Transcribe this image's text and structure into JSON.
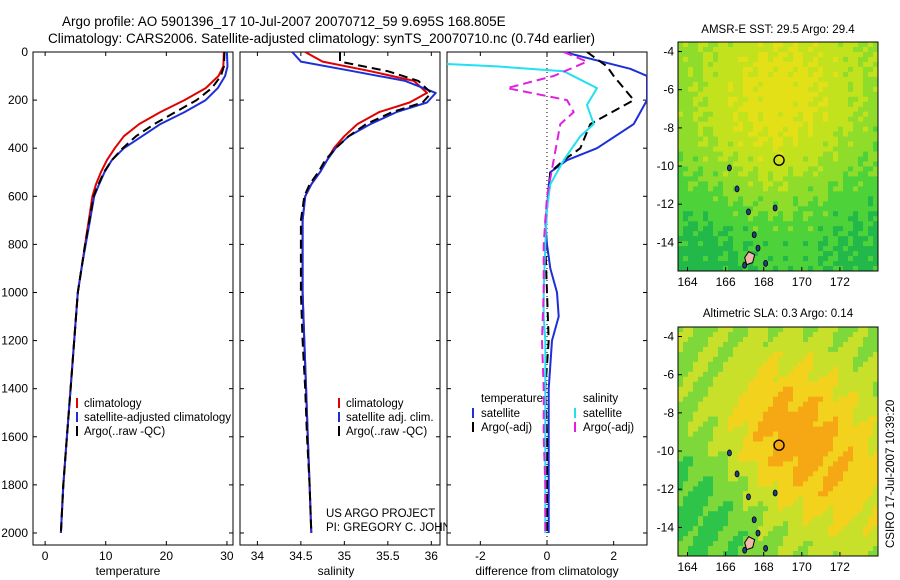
{
  "header": {
    "title_line1": "Argo profile: AO 5901396_17 10-Jul-2007 20070712_59 9.695S 168.805E",
    "title_line2": "Climatology: CARS2006. Satellite-adjusted climatology: synTS_20070710.nc (0.74d earlier)"
  },
  "credits": {
    "project": "US ARGO PROJECT",
    "pi": "PI: GREGORY C. JOHNSON",
    "stamp": "CSIRO 17-Jul-2007 10:39:20"
  },
  "colors": {
    "climatology": "#e00000",
    "satellite": "#1c2fd8",
    "argo": "#000000",
    "sat_salinity": "#22e0f0",
    "argo_salinity_adj": "#e020e0",
    "land": "#f0b8a8"
  },
  "chart_data": [
    {
      "type": "line",
      "id": "temperature",
      "xlabel": "temperature",
      "xlim": [
        -2,
        31
      ],
      "ylim": [
        2050,
        0
      ],
      "xticks": [
        0,
        10,
        20,
        30
      ],
      "yticks": [
        0,
        200,
        400,
        600,
        800,
        1000,
        1200,
        1400,
        1600,
        1800,
        2000
      ],
      "legend": [
        "climatology",
        "satellite-adjusted climatology",
        "Argo(..raw -QC)"
      ],
      "legend_position": "lower-right",
      "series": [
        {
          "name": "climatology",
          "color_key": "climatology",
          "dash": "",
          "points": [
            [
              29.5,
              0
            ],
            [
              29.4,
              60
            ],
            [
              28.6,
              100
            ],
            [
              26.5,
              150
            ],
            [
              23,
              200
            ],
            [
              19,
              250
            ],
            [
              15.5,
              300
            ],
            [
              13,
              350
            ],
            [
              11.5,
              400
            ],
            [
              10.2,
              450
            ],
            [
              9.2,
              500
            ],
            [
              8.4,
              550
            ],
            [
              7.8,
              600
            ],
            [
              7.2,
              700
            ],
            [
              6.6,
              800
            ],
            [
              6.0,
              900
            ],
            [
              5.4,
              1000
            ],
            [
              4.8,
              1200
            ],
            [
              4.2,
              1400
            ],
            [
              3.6,
              1600
            ],
            [
              3.0,
              1800
            ],
            [
              2.6,
              2000
            ]
          ]
        },
        {
          "name": "satellite-adjusted climatology",
          "color_key": "satellite",
          "dash": "",
          "points": [
            [
              30,
              0
            ],
            [
              30.1,
              60
            ],
            [
              29.7,
              100
            ],
            [
              28.5,
              150
            ],
            [
              26.5,
              200
            ],
            [
              23,
              250
            ],
            [
              19,
              300
            ],
            [
              16,
              350
            ],
            [
              13,
              400
            ],
            [
              11,
              450
            ],
            [
              9.8,
              500
            ],
            [
              8.9,
              550
            ],
            [
              8.1,
              600
            ],
            [
              7.4,
              700
            ],
            [
              6.7,
              800
            ],
            [
              6.0,
              900
            ],
            [
              5.4,
              1000
            ],
            [
              4.8,
              1200
            ],
            [
              4.2,
              1400
            ],
            [
              3.6,
              1600
            ],
            [
              3.0,
              1800
            ],
            [
              2.6,
              2000
            ]
          ]
        },
        {
          "name": "Argo(..raw -QC)",
          "color_key": "argo",
          "dash": "9,5",
          "points": [
            [
              29.6,
              0
            ],
            [
              29.5,
              60
            ],
            [
              29,
              100
            ],
            [
              27.5,
              150
            ],
            [
              25,
              200
            ],
            [
              21.5,
              250
            ],
            [
              18,
              300
            ],
            [
              15,
              350
            ],
            [
              12.8,
              400
            ],
            [
              11,
              450
            ],
            [
              9.7,
              500
            ],
            [
              8.8,
              550
            ],
            [
              8.0,
              600
            ],
            [
              7.3,
              700
            ],
            [
              6.6,
              800
            ],
            [
              6.0,
              900
            ],
            [
              5.4,
              1000
            ],
            [
              4.8,
              1200
            ],
            [
              4.2,
              1400
            ],
            [
              3.6,
              1600
            ],
            [
              3.0,
              1800
            ],
            [
              2.6,
              2000
            ]
          ]
        }
      ]
    },
    {
      "type": "line",
      "id": "salinity",
      "xlabel": "salinity",
      "xlim": [
        33.8,
        36.1
      ],
      "ylim": [
        2050,
        0
      ],
      "xticks": [
        34,
        34.5,
        35,
        35.5,
        36
      ],
      "yticks": [
        0,
        200,
        400,
        600,
        800,
        1000,
        1200,
        1400,
        1600,
        1800,
        2000
      ],
      "legend": [
        "climatology",
        "satellite adj. clim.",
        "Argo(..raw -QC)"
      ],
      "legend_position": "lower-right",
      "series": [
        {
          "name": "climatology",
          "color_key": "climatology",
          "dash": "",
          "points": [
            [
              34.55,
              0
            ],
            [
              34.75,
              40
            ],
            [
              35.3,
              80
            ],
            [
              35.8,
              120
            ],
            [
              35.95,
              170
            ],
            [
              35.75,
              210
            ],
            [
              35.4,
              250
            ],
            [
              35.15,
              300
            ],
            [
              35.0,
              350
            ],
            [
              34.88,
              400
            ],
            [
              34.8,
              450
            ],
            [
              34.72,
              500
            ],
            [
              34.62,
              550
            ],
            [
              34.55,
              600
            ],
            [
              34.52,
              700
            ],
            [
              34.52,
              800
            ],
            [
              34.52,
              1000
            ],
            [
              34.54,
              1200
            ],
            [
              34.56,
              1400
            ],
            [
              34.58,
              1600
            ],
            [
              34.6,
              1800
            ],
            [
              34.62,
              2000
            ]
          ]
        },
        {
          "name": "satellite adj. clim.",
          "color_key": "satellite",
          "dash": "",
          "points": [
            [
              34.4,
              0
            ],
            [
              34.5,
              40
            ],
            [
              35.1,
              80
            ],
            [
              35.7,
              120
            ],
            [
              36.05,
              170
            ],
            [
              35.95,
              210
            ],
            [
              35.6,
              250
            ],
            [
              35.3,
              300
            ],
            [
              35.05,
              350
            ],
            [
              34.9,
              400
            ],
            [
              34.8,
              450
            ],
            [
              34.72,
              500
            ],
            [
              34.62,
              550
            ],
            [
              34.55,
              600
            ],
            [
              34.52,
              700
            ],
            [
              34.52,
              800
            ],
            [
              34.52,
              1000
            ],
            [
              34.54,
              1200
            ],
            [
              34.56,
              1400
            ],
            [
              34.58,
              1600
            ],
            [
              34.6,
              1800
            ],
            [
              34.62,
              2000
            ]
          ]
        },
        {
          "name": "Argo(..raw -QC)",
          "color_key": "argo",
          "dash": "9,5",
          "points": [
            [
              34.95,
              0
            ],
            [
              34.95,
              40
            ],
            [
              35.5,
              80
            ],
            [
              35.85,
              120
            ],
            [
              36.0,
              170
            ],
            [
              35.9,
              210
            ],
            [
              35.55,
              250
            ],
            [
              35.25,
              300
            ],
            [
              35.05,
              350
            ],
            [
              34.9,
              400
            ],
            [
              34.78,
              450
            ],
            [
              34.7,
              500
            ],
            [
              34.6,
              550
            ],
            [
              34.54,
              600
            ],
            [
              34.5,
              700
            ],
            [
              34.5,
              800
            ],
            [
              34.5,
              1000
            ],
            [
              34.52,
              1200
            ],
            [
              34.55,
              1400
            ],
            [
              34.57,
              1600
            ],
            [
              34.6,
              1800
            ],
            [
              34.62,
              2000
            ]
          ]
        }
      ]
    },
    {
      "type": "line",
      "id": "difference",
      "xlabel": "difference from climatology",
      "xlim": [
        -3,
        3
      ],
      "ylim": [
        2050,
        0
      ],
      "xticks": [
        -2,
        0,
        2
      ],
      "zero_line": 0,
      "legend_left_title": "temperature",
      "legend_right_title": "salinity",
      "legend_left": [
        "satellite",
        "Argo(-adj)"
      ],
      "legend_right": [
        "satellite",
        "Argo(-adj)"
      ],
      "legend_position": "lower-center",
      "series": [
        {
          "name": "temperature satellite",
          "color_key": "satellite",
          "dash": "",
          "points": [
            [
              0.5,
              0
            ],
            [
              2.5,
              70
            ],
            [
              3.0,
              100
            ],
            [
              3.0,
              200
            ],
            [
              2.6,
              300
            ],
            [
              1.5,
              400
            ],
            [
              0.6,
              450
            ],
            [
              0.1,
              500
            ],
            [
              0.05,
              560
            ],
            [
              0.0,
              650
            ],
            [
              -0.05,
              700
            ],
            [
              0.0,
              800
            ],
            [
              0.1,
              900
            ],
            [
              0.3,
              1000
            ],
            [
              0.35,
              1100
            ],
            [
              0.15,
              1200
            ],
            [
              0.05,
              1400
            ],
            [
              0.05,
              1600
            ],
            [
              0.05,
              1800
            ],
            [
              0.05,
              2000
            ]
          ]
        },
        {
          "name": "temperature Argo(-adj)",
          "color_key": "argo",
          "dash": "9,5",
          "points": [
            [
              1.2,
              0
            ],
            [
              1.8,
              60
            ],
            [
              2.0,
              100
            ],
            [
              2.6,
              200
            ],
            [
              1.3,
              300
            ],
            [
              1.0,
              400
            ],
            [
              0.5,
              450
            ],
            [
              0.1,
              500
            ],
            [
              0.0,
              650
            ],
            [
              -0.05,
              800
            ],
            [
              0.0,
              1000
            ],
            [
              0.05,
              1200
            ],
            [
              -0.05,
              1400
            ],
            [
              0.0,
              1600
            ],
            [
              0.0,
              1800
            ],
            [
              0.0,
              2000
            ]
          ]
        },
        {
          "name": "salinity satellite",
          "color_key": "sat_salinity",
          "dash": "",
          "points": [
            [
              -3,
              50
            ],
            [
              -1.5,
              60
            ],
            [
              0.5,
              80
            ],
            [
              1.5,
              150
            ],
            [
              1.2,
              220
            ],
            [
              1.4,
              300
            ],
            [
              1.0,
              350
            ],
            [
              0.5,
              450
            ],
            [
              0.1,
              550
            ],
            [
              0.0,
              650
            ],
            [
              -0.05,
              800
            ],
            [
              -0.1,
              1000
            ],
            [
              -0.1,
              1100
            ],
            [
              -0.05,
              1200
            ],
            [
              -0.05,
              1400
            ],
            [
              -0.05,
              1600
            ],
            [
              -0.05,
              1800
            ],
            [
              -0.05,
              2000
            ]
          ]
        },
        {
          "name": "salinity Argo(-adj)",
          "color_key": "argo_salinity_adj",
          "dash": "9,5",
          "points": [
            [
              0.5,
              0
            ],
            [
              1.2,
              40
            ],
            [
              0.2,
              100
            ],
            [
              -1.2,
              150
            ],
            [
              0.6,
              200
            ],
            [
              0.8,
              250
            ],
            [
              0.4,
              300
            ],
            [
              0.0,
              600
            ],
            [
              -0.1,
              800
            ],
            [
              -0.1,
              1000
            ],
            [
              -0.15,
              1200
            ],
            [
              -0.1,
              1400
            ],
            [
              -0.1,
              1600
            ],
            [
              -0.05,
              1800
            ],
            [
              -0.05,
              2000
            ]
          ]
        }
      ]
    },
    {
      "type": "heatmap",
      "id": "sst_map",
      "title": "AMSR-E SST: 29.5 Argo: 29.4",
      "field": "SST",
      "map_value": 29.5,
      "argo_value": 29.4,
      "xlim": [
        163.5,
        174
      ],
      "ylim": [
        -15.5,
        -3.5
      ],
      "xticks": [
        164,
        166,
        168,
        170,
        172
      ],
      "yticks": [
        -4,
        -6,
        -8,
        -10,
        -12,
        -14
      ],
      "profile_marker": {
        "lon": 168.805,
        "lat": -9.695
      },
      "colormap": [
        "#22b84a",
        "#4ed23a",
        "#8fdd2a",
        "#c2e21e",
        "#e4e018"
      ]
    },
    {
      "type": "heatmap",
      "id": "sla_map",
      "title": "Altimetric SLA: 0.3 Argo: 0.14",
      "field": "SLA",
      "map_value": 0.3,
      "argo_value": 0.14,
      "xlim": [
        163.5,
        174
      ],
      "ylim": [
        -15.5,
        -3.5
      ],
      "xticks": [
        164,
        166,
        168,
        170,
        172
      ],
      "yticks": [
        -4,
        -6,
        -8,
        -10,
        -12,
        -14
      ],
      "profile_marker": {
        "lon": 168.805,
        "lat": -9.695
      },
      "colormap": [
        "#2ec44a",
        "#7ed83a",
        "#c8e02a",
        "#f2d21c",
        "#f6a814"
      ]
    }
  ]
}
